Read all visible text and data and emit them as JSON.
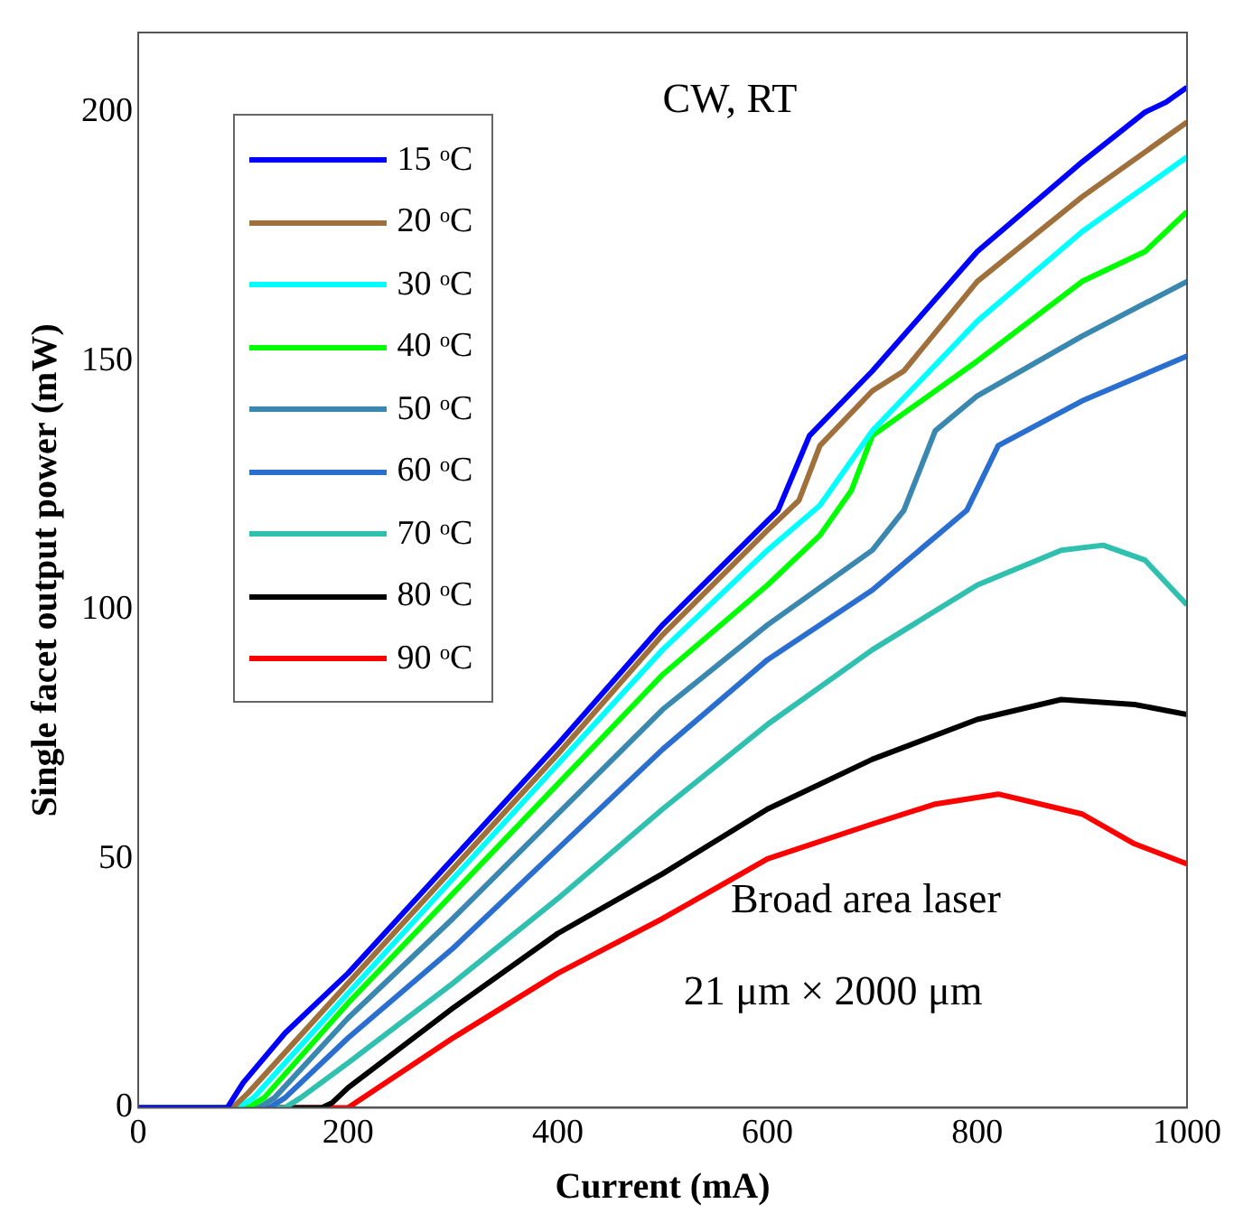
{
  "chart_data": {
    "type": "line",
    "xlabel": "Current (mA)",
    "ylabel": "Single facet output power (mW)",
    "xlim": [
      0,
      1000
    ],
    "ylim": [
      0,
      216
    ],
    "xticks": [
      0,
      200,
      400,
      600,
      800,
      1000
    ],
    "yticks": [
      0,
      50,
      100,
      150,
      200
    ],
    "grid": false,
    "legend": "top left",
    "marker": "none",
    "line_style": "solid",
    "annotations": [
      "CW, RT",
      "Broad area laser",
      "21 μm × 2000 μm"
    ],
    "series": [
      {
        "name": "15 ᵒC",
        "color": "#0000ff",
        "x": [
          0,
          85,
          100,
          140,
          200,
          300,
          400,
          500,
          610,
          640,
          700,
          800,
          900,
          960,
          980,
          1000
        ],
        "values": [
          0,
          0,
          5,
          15,
          27,
          50,
          73,
          97,
          120,
          135,
          148,
          172,
          190,
          200,
          202,
          205
        ]
      },
      {
        "name": "20 ᵒC",
        "color": "#a0703c",
        "x": [
          0,
          90,
          105,
          200,
          300,
          400,
          500,
          600,
          630,
          650,
          700,
          730,
          800,
          900,
          1000
        ],
        "values": [
          0,
          0,
          3,
          25,
          48,
          71,
          95,
          116,
          122,
          133,
          144,
          148,
          166,
          183,
          198
        ]
      },
      {
        "name": "30 ᵒC",
        "color": "#00ffff",
        "x": [
          0,
          95,
          110,
          200,
          300,
          400,
          500,
          600,
          650,
          700,
          800,
          900,
          1000
        ],
        "values": [
          0,
          0,
          2,
          23,
          46,
          69,
          92,
          112,
          121,
          136,
          158,
          176,
          191
        ]
      },
      {
        "name": "40 ᵒC",
        "color": "#00ff00",
        "x": [
          0,
          105,
          120,
          200,
          300,
          400,
          500,
          600,
          650,
          680,
          700,
          800,
          900,
          960,
          1000
        ],
        "values": [
          0,
          0,
          2,
          21,
          43,
          65,
          87,
          105,
          115,
          124,
          135,
          150,
          166,
          172,
          180
        ]
      },
      {
        "name": "50 ᵒC",
        "color": "#3a88b0",
        "x": [
          0,
          115,
          130,
          200,
          300,
          400,
          500,
          600,
          700,
          730,
          760,
          800,
          900,
          1000
        ],
        "values": [
          0,
          0,
          2,
          18,
          38,
          59,
          80,
          97,
          112,
          120,
          136,
          143,
          155,
          166
        ]
      },
      {
        "name": "60 ᵒC",
        "color": "#2a6fd0",
        "x": [
          0,
          125,
          140,
          200,
          300,
          400,
          500,
          600,
          700,
          790,
          820,
          900,
          1000
        ],
        "values": [
          0,
          0,
          2,
          14,
          32,
          52,
          72,
          90,
          104,
          120,
          133,
          142,
          151
        ]
      },
      {
        "name": "70 ᵒC",
        "color": "#30c0b0",
        "x": [
          0,
          140,
          155,
          200,
          300,
          400,
          500,
          600,
          700,
          800,
          880,
          920,
          960,
          1000
        ],
        "values": [
          0,
          0,
          2,
          9,
          25,
          42,
          60,
          77,
          92,
          105,
          112,
          113,
          110,
          101
        ]
      },
      {
        "name": "80 ᵒC",
        "color": "#000000",
        "x": [
          0,
          175,
          185,
          200,
          300,
          400,
          500,
          600,
          700,
          800,
          880,
          950,
          1000
        ],
        "values": [
          0,
          0,
          1,
          4,
          20,
          35,
          47,
          60,
          70,
          78,
          82,
          81,
          79
        ]
      },
      {
        "name": "90 ᵒC",
        "color": "#ff0000",
        "x": [
          0,
          200,
          300,
          400,
          500,
          600,
          700,
          760,
          820,
          900,
          950,
          1000
        ],
        "values": [
          0,
          0,
          14,
          27,
          38,
          50,
          57,
          61,
          63,
          59,
          53,
          49
        ]
      }
    ]
  }
}
